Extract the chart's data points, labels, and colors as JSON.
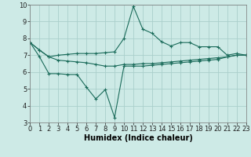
{
  "line1_x": [
    0,
    1,
    2,
    3,
    4,
    5,
    6,
    7,
    8,
    9,
    10,
    11,
    12,
    13,
    14,
    15,
    16,
    17,
    18,
    19,
    20,
    21,
    22,
    23
  ],
  "line1_y": [
    7.75,
    7.3,
    6.9,
    7.0,
    7.05,
    7.1,
    7.1,
    7.1,
    7.15,
    7.2,
    8.0,
    9.9,
    8.55,
    8.3,
    7.8,
    7.55,
    7.75,
    7.75,
    7.5,
    7.5,
    7.5,
    7.0,
    7.1,
    7.0
  ],
  "line2_x": [
    0,
    1,
    2,
    3,
    4,
    5,
    6,
    7,
    8,
    9,
    10,
    11,
    12,
    13,
    14,
    15,
    16,
    17,
    18,
    19,
    20,
    21,
    22,
    23
  ],
  "line2_y": [
    7.75,
    7.3,
    6.9,
    6.7,
    6.65,
    6.6,
    6.55,
    6.45,
    6.35,
    6.35,
    6.45,
    6.45,
    6.5,
    6.5,
    6.55,
    6.6,
    6.65,
    6.7,
    6.75,
    6.8,
    6.85,
    6.9,
    7.0,
    7.0
  ],
  "line3_x": [
    0,
    1,
    2,
    3,
    4,
    5,
    6,
    7,
    8,
    9,
    10,
    11,
    12,
    13,
    14,
    15,
    16,
    17,
    18,
    19,
    20,
    21,
    22,
    23
  ],
  "line3_y": [
    7.75,
    6.9,
    5.9,
    5.9,
    5.85,
    5.85,
    5.1,
    4.4,
    4.95,
    3.3,
    6.35,
    6.35,
    6.35,
    6.4,
    6.45,
    6.5,
    6.55,
    6.6,
    6.65,
    6.7,
    6.75,
    6.9,
    7.0,
    7.0
  ],
  "line_color": "#1a6b5a",
  "bg_color": "#cdeae6",
  "grid_color": "#aacfcb",
  "xlabel": "Humidex (Indice chaleur)",
  "xlim": [
    0,
    23
  ],
  "ylim": [
    3,
    10
  ],
  "yticks": [
    3,
    4,
    5,
    6,
    7,
    8,
    9,
    10
  ],
  "xticks": [
    0,
    1,
    2,
    3,
    4,
    5,
    6,
    7,
    8,
    9,
    10,
    11,
    12,
    13,
    14,
    15,
    16,
    17,
    18,
    19,
    20,
    21,
    22,
    23
  ],
  "xlabel_fontsize": 7,
  "tick_fontsize": 6,
  "marker": "+",
  "markersize": 3,
  "linewidth": 0.8
}
